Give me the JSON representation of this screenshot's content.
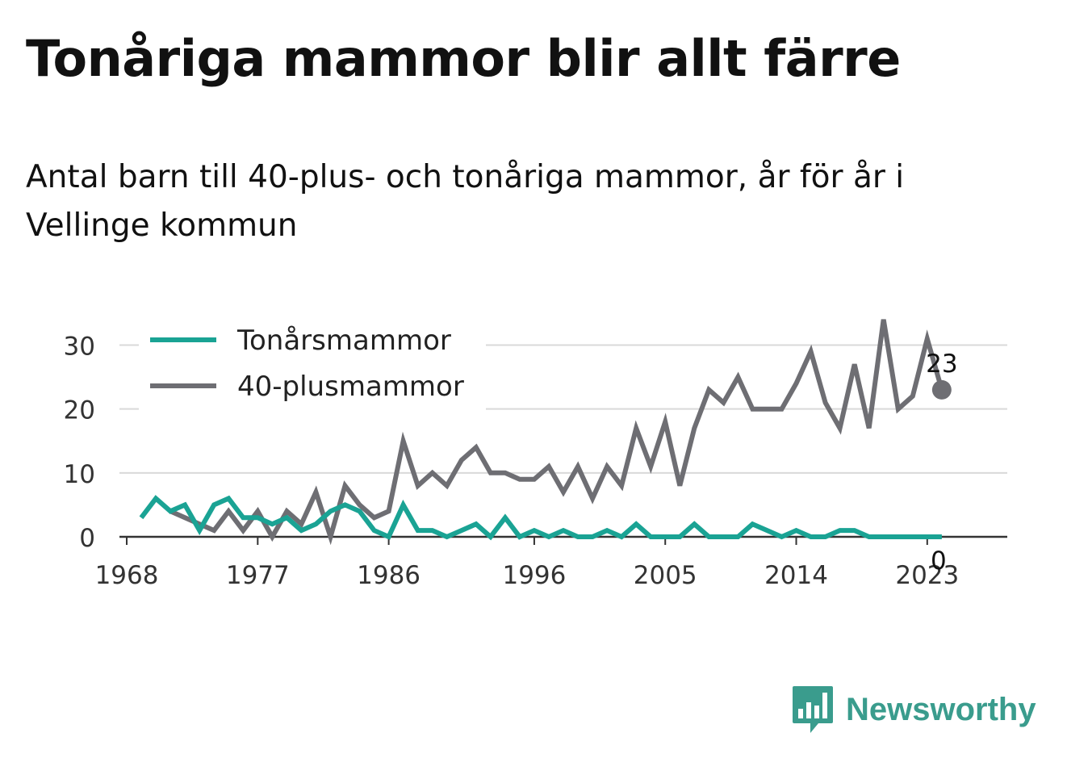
{
  "title": "Tonåriga mammor blir allt färre",
  "subtitle": "Antal barn till 40-plus- och tonåriga mammor, år för år i Vellinge kommun",
  "brand": {
    "name": "Newsworthy",
    "icon": "newsworthy-logo-icon",
    "color": "#3a9c8d"
  },
  "chart_data": {
    "type": "line",
    "x": [
      1969,
      1970,
      1971,
      1972,
      1973,
      1974,
      1975,
      1976,
      1977,
      1978,
      1979,
      1980,
      1981,
      1982,
      1983,
      1984,
      1985,
      1986,
      1987,
      1988,
      1989,
      1990,
      1991,
      1992,
      1993,
      1994,
      1995,
      1996,
      1997,
      1998,
      1999,
      2000,
      2001,
      2002,
      2003,
      2004,
      2005,
      2006,
      2007,
      2008,
      2009,
      2010,
      2011,
      2012,
      2013,
      2014,
      2015,
      2016,
      2017,
      2018,
      2019,
      2020,
      2021,
      2022,
      2023,
      2024
    ],
    "series": [
      {
        "name": "Tonårsmammor",
        "color": "#1aa394",
        "values": [
          3,
          6,
          4,
          5,
          1,
          5,
          6,
          3,
          3,
          2,
          3,
          1,
          2,
          4,
          5,
          4,
          1,
          0,
          5,
          1,
          1,
          0,
          1,
          2,
          0,
          3,
          0,
          1,
          0,
          1,
          0,
          0,
          1,
          0,
          2,
          0,
          0,
          0,
          2,
          0,
          0,
          0,
          2,
          1,
          0,
          1,
          0,
          0,
          1,
          1,
          0,
          0,
          0,
          0,
          0,
          0
        ],
        "end_label": "0"
      },
      {
        "name": "40-plusmammor",
        "color": "#6e6e73",
        "values": [
          null,
          null,
          4,
          3,
          2,
          1,
          4,
          1,
          4,
          0,
          4,
          2,
          7,
          0,
          8,
          5,
          3,
          4,
          15,
          8,
          10,
          8,
          12,
          14,
          10,
          10,
          9,
          9,
          11,
          7,
          11,
          6,
          11,
          8,
          17,
          11,
          18,
          8,
          17,
          23,
          21,
          25,
          20,
          20,
          20,
          24,
          29,
          21,
          17,
          27,
          17,
          34,
          20,
          22,
          31,
          23
        ],
        "end_label": "23"
      }
    ],
    "xticks": [
      1968,
      1977,
      1986,
      1996,
      2005,
      2014,
      2023
    ],
    "yticks": [
      0,
      10,
      20,
      30
    ],
    "xlim": [
      1967.5,
      2028.5
    ],
    "ylim": [
      0,
      36
    ],
    "grid": "horizontal",
    "legend": "top-left"
  }
}
